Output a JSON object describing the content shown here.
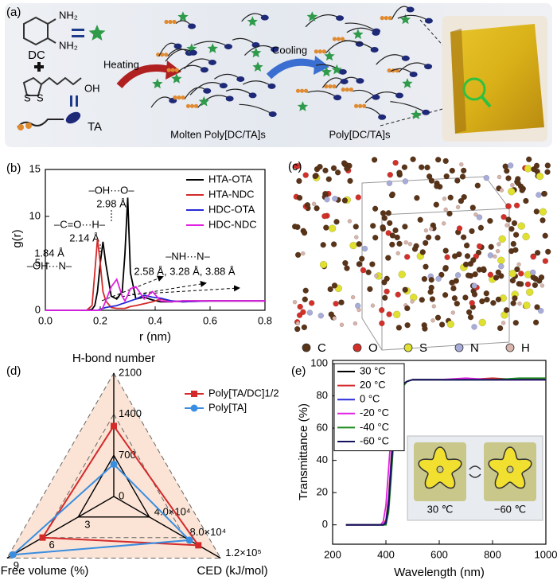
{
  "panel_a": {
    "label": "(a)",
    "amines": [
      "NH₂",
      "NH₂"
    ],
    "dc": "DC",
    "acid": "OH",
    "sulfur": [
      "S",
      "S"
    ],
    "ta": "TA",
    "heating": "Heating",
    "cooling": "Cooling",
    "molten": "Molten Poly[DC/TA]s",
    "product": "Poly[DC/TA]s"
  },
  "panel_c": {
    "label": "(c)",
    "atoms": [
      {
        "name": "C",
        "color": "#5a3418"
      },
      {
        "name": "O",
        "color": "#d4302a"
      },
      {
        "name": "S",
        "color": "#e0e030"
      },
      {
        "name": "N",
        "color": "#a8acd8"
      },
      {
        "name": "H",
        "color": "#d8b4aa"
      }
    ]
  },
  "chart_data": [
    {
      "type": "line",
      "panel": "(b)",
      "x_label": "r (nm)",
      "y_label": "g(r)",
      "xlim": [
        0,
        0.8
      ],
      "xticks": [
        {
          "value": 0,
          "label": "0.0"
        },
        0.2,
        0.4,
        0.6,
        0.8
      ],
      "ylim": [
        0,
        15
      ],
      "yticks": [
        0,
        5,
        10,
        15
      ],
      "legend": "upper right",
      "x": [
        0,
        0.05,
        0.1,
        0.15,
        0.17,
        0.18,
        0.19,
        0.2,
        0.21,
        0.22,
        0.24,
        0.26,
        0.28,
        0.29,
        0.3,
        0.31,
        0.33,
        0.36,
        0.39,
        0.42,
        0.46,
        0.5,
        0.6,
        0.7,
        0.8
      ],
      "series": [
        {
          "name": "HTA-OTA",
          "color": "#000000",
          "values": [
            0,
            0,
            0,
            0,
            0.1,
            0.5,
            2,
            5,
            7.3,
            5,
            1.5,
            1.2,
            2,
            6,
            12,
            4,
            1.2,
            1.4,
            1.1,
            0.9,
            0.9,
            1,
            1,
            1,
            1
          ]
        },
        {
          "name": "HTA-NDC",
          "color": "#d42a2a",
          "values": [
            0,
            0,
            0,
            0,
            0.5,
            4,
            7.6,
            5,
            2,
            1,
            0.3,
            0.2,
            0.2,
            0.2,
            0.3,
            0.4,
            0.5,
            0.7,
            0.9,
            1.2,
            1,
            0.9,
            1,
            1,
            1
          ]
        },
        {
          "name": "HDC-OTA",
          "color": "#2a2ad8",
          "values": [
            0,
            0,
            0,
            0,
            0,
            0,
            0,
            0.1,
            0.2,
            0.3,
            0.4,
            0.5,
            0.7,
            0.8,
            0.9,
            1,
            1.2,
            1.6,
            1.4,
            1.3,
            1,
            0.9,
            1,
            1,
            1
          ]
        },
        {
          "name": "HDC-NDC",
          "color": "#e020e0",
          "values": [
            0,
            0,
            0,
            0,
            0,
            0,
            0,
            0,
            0.3,
            1,
            2.5,
            3.3,
            1.5,
            1,
            1.6,
            2.3,
            2.5,
            1.2,
            2,
            1,
            0.9,
            1,
            1,
            1,
            1
          ]
        }
      ],
      "annotations": [
        "–OH···O–",
        "2.98 Å",
        "–C=O···H–",
        "2.14 Å",
        "1.84 Å",
        "–OH···N–",
        "–NH···N–",
        "2.58 Å, 3.28 Å, 3.88 Å"
      ]
    },
    {
      "type": "radar",
      "panel": "(d)",
      "legend": "upper right",
      "categories": [
        "H-bond number",
        "CED (kJ/mol)",
        "Free volume (%)"
      ],
      "lims": [
        [
          0,
          2100
        ],
        [
          0,
          120000
        ],
        [
          0,
          9
        ]
      ],
      "ticks": [
        [
          0,
          700,
          1400,
          2100
        ],
        [
          {
            "value": 40000,
            "label": "4.0×10⁴"
          },
          {
            "value": 80000,
            "label": "8.0×10⁴"
          },
          {
            "value": 120000,
            "label": "1.2×10⁵"
          }
        ],
        [
          3,
          6,
          9
        ]
      ],
      "series": [
        {
          "name": "Poly[TA/DC]1/2",
          "color": "#d42a2a",
          "marker": "square",
          "values": [
            1200,
            95000,
            6
          ]
        },
        {
          "name": "Poly[TA]",
          "color": "#3a8ee0",
          "marker": "circle",
          "values": [
            550,
            85000,
            8.5
          ]
        }
      ]
    },
    {
      "type": "line",
      "panel": "(e)",
      "x_label": "Wavelength (nm)",
      "y_label": "Transmittance (%)",
      "xlim": [
        200,
        1000
      ],
      "xticks": [
        200,
        400,
        600,
        800,
        1000
      ],
      "ylim": [
        -12,
        102
      ],
      "yticks": [
        0,
        20,
        40,
        60,
        80,
        100
      ],
      "legend": "upper left",
      "x": [
        250,
        380,
        390,
        400,
        410,
        420,
        430,
        440,
        450,
        460,
        470,
        480,
        500,
        550,
        600,
        700,
        800,
        900,
        1000
      ],
      "series": [
        {
          "name": "30 °C",
          "color": "#000000",
          "values": [
            0,
            0,
            0,
            2,
            15,
            40,
            62,
            75,
            82,
            86,
            88,
            89,
            90,
            90,
            90,
            90,
            90,
            90,
            91
          ]
        },
        {
          "name": "20 °C",
          "color": "#d42a2a",
          "values": [
            0,
            0,
            0,
            3,
            17,
            42,
            63,
            76,
            82,
            86,
            88,
            89,
            90,
            90,
            90,
            90,
            91,
            90,
            91
          ]
        },
        {
          "name": "0 °C",
          "color": "#2a2ad8",
          "values": [
            0,
            0,
            0,
            2,
            14,
            39,
            61,
            75,
            82,
            86,
            88,
            89,
            90,
            90,
            90,
            90,
            90,
            90,
            90
          ]
        },
        {
          "name": "-20 °C",
          "color": "#e020e0",
          "values": [
            0,
            0,
            2,
            12,
            35,
            58,
            73,
            81,
            85,
            87,
            88,
            89,
            90,
            90,
            90,
            91,
            90,
            90,
            90
          ]
        },
        {
          "name": "-40 °C",
          "color": "#1c8c1c",
          "values": [
            0,
            0,
            0,
            0,
            8,
            30,
            55,
            71,
            80,
            85,
            87,
            89,
            90,
            90,
            90,
            90,
            90,
            91,
            91
          ]
        },
        {
          "name": "-60 °C",
          "color": "#12125e",
          "values": [
            0,
            0,
            0,
            1,
            12,
            36,
            59,
            74,
            81,
            86,
            88,
            89,
            90,
            90,
            90,
            90,
            90,
            90,
            90
          ]
        }
      ],
      "inset_labels": [
        "30 ℃",
        "−60 ℃"
      ]
    }
  ]
}
